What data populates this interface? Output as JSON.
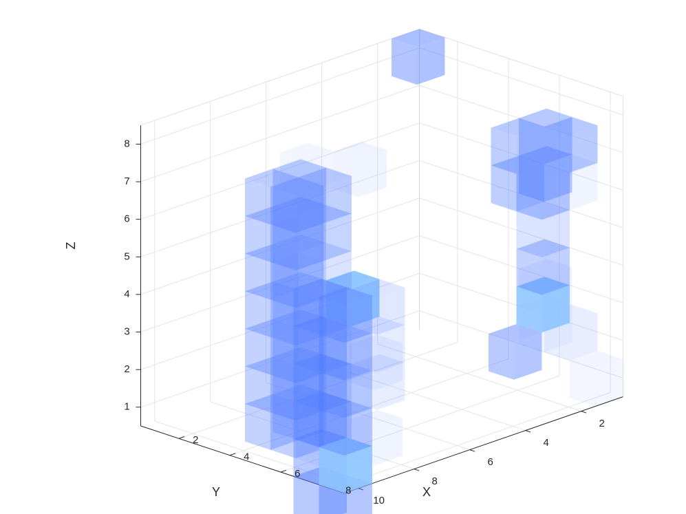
{
  "chart_data": {
    "type": "3d-voxel",
    "xlabel": "X",
    "ylabel": "Y",
    "zlabel": "Z",
    "xticks": [
      "2",
      "4",
      "6",
      "8",
      "10"
    ],
    "yticks": [
      "2",
      "4",
      "6",
      "8"
    ],
    "zticks": [
      "1",
      "2",
      "3",
      "4",
      "5",
      "6",
      "7",
      "8"
    ],
    "xlim": [
      0.5,
      10.5
    ],
    "ylim": [
      0.5,
      8.5
    ],
    "zlim": [
      0.5,
      8.5
    ],
    "grid": true,
    "face_color": "#4F7BFF",
    "highlight_color": "#8CC4FF",
    "voxels": [
      {
        "x": 1,
        "y": 8,
        "z": 1,
        "alpha": 0.1
      },
      {
        "x": 1,
        "y": 6,
        "z": 2,
        "alpha": 0.1
      },
      {
        "x": 1,
        "y": 6,
        "z": 3,
        "alpha": 0.12
      },
      {
        "x": 1,
        "y": 7,
        "z": 2,
        "alpha": 0.18
      },
      {
        "x": 1,
        "y": 7,
        "z": 6,
        "alpha": 0.12
      },
      {
        "x": 1,
        "y": 6,
        "z": 6,
        "alpha": 0.55
      },
      {
        "x": 1,
        "y": 6,
        "z": 7,
        "alpha": 0.55
      },
      {
        "x": 2,
        "y": 6,
        "z": 7,
        "alpha": 0.55
      },
      {
        "x": 2,
        "y": 6,
        "z": 6,
        "alpha": 0.55
      },
      {
        "x": 2,
        "y": 7,
        "z": 6,
        "alpha": 0.55
      },
      {
        "x": 1,
        "y": 7,
        "z": 7,
        "alpha": 0.55
      },
      {
        "x": 2,
        "y": 7,
        "z": 5,
        "alpha": 0.3
      },
      {
        "x": 2,
        "y": 7,
        "z": 4,
        "alpha": 0.5
      },
      {
        "x": 2,
        "y": 7,
        "z": 3,
        "alpha": 1.0,
        "highlight": true
      },
      {
        "x": 3,
        "y": 7,
        "z": 2,
        "alpha": 0.6
      },
      {
        "x": 1,
        "y": 1,
        "z": 8,
        "alpha": 0.65
      },
      {
        "x": 4,
        "y": 2,
        "z": 6,
        "alpha": 0.12
      },
      {
        "x": 5,
        "y": 1,
        "z": 6,
        "alpha": 0.1
      },
      {
        "x": 7,
        "y": 6,
        "z": 3,
        "alpha": 0.2
      },
      {
        "x": 7,
        "y": 6,
        "z": 2,
        "alpha": 0.18
      },
      {
        "x": 8,
        "y": 7,
        "z": 3,
        "alpha": 0.12
      },
      {
        "x": 8,
        "y": 7,
        "z": 1,
        "alpha": 0.12
      },
      {
        "x": 9,
        "y": 6,
        "z": 1,
        "alpha": 0.12
      },
      {
        "x": 8,
        "y": 4,
        "z": 5,
        "alpha": 0.3
      },
      {
        "x": 8,
        "y": 5,
        "z": 5,
        "alpha": 0.3
      },
      {
        "x": 8,
        "y": 5,
        "z": 4,
        "alpha": 0.3
      },
      {
        "x": 8,
        "y": 5,
        "z": 3,
        "alpha": 0.3
      },
      {
        "x": 8,
        "y": 4,
        "z": 4,
        "alpha": 0.4
      },
      {
        "x": 8,
        "y": 4,
        "z": 3,
        "alpha": 0.4
      },
      {
        "x": 8,
        "y": 4,
        "z": 2,
        "alpha": 0.4
      },
      {
        "x": 8,
        "y": 5,
        "z": 2,
        "alpha": 0.4
      },
      {
        "x": 8,
        "y": 5,
        "z": 6,
        "alpha": 0.45
      },
      {
        "x": 8,
        "y": 4,
        "z": 6,
        "alpha": 0.45
      },
      {
        "x": 8,
        "y": 4,
        "z": 7,
        "alpha": 0.5
      },
      {
        "x": 8,
        "y": 5,
        "z": 7,
        "alpha": 0.5
      },
      {
        "x": 9,
        "y": 5,
        "z": 7,
        "alpha": 0.5
      },
      {
        "x": 9,
        "y": 4,
        "z": 7,
        "alpha": 0.5
      },
      {
        "x": 9,
        "y": 4,
        "z": 6,
        "alpha": 0.5
      },
      {
        "x": 9,
        "y": 5,
        "z": 6,
        "alpha": 0.5
      },
      {
        "x": 9,
        "y": 5,
        "z": 5,
        "alpha": 0.5
      },
      {
        "x": 9,
        "y": 4,
        "z": 5,
        "alpha": 0.5
      },
      {
        "x": 9,
        "y": 4,
        "z": 4,
        "alpha": 0.5
      },
      {
        "x": 9,
        "y": 5,
        "z": 4,
        "alpha": 0.4
      },
      {
        "x": 9,
        "y": 4,
        "z": 3,
        "alpha": 0.5
      },
      {
        "x": 9,
        "y": 5,
        "z": 3,
        "alpha": 0.45
      },
      {
        "x": 9,
        "y": 4,
        "z": 2,
        "alpha": 0.5
      },
      {
        "x": 9,
        "y": 5,
        "z": 2,
        "alpha": 0.5
      },
      {
        "x": 9,
        "y": 5,
        "z": 1,
        "alpha": 0.5
      },
      {
        "x": 9,
        "y": 4,
        "z": 1,
        "alpha": 0.5
      },
      {
        "x": 8,
        "y": 4,
        "z": 1,
        "alpha": 0.4
      },
      {
        "x": 8,
        "y": 5,
        "z": 1,
        "alpha": 0.4
      },
      {
        "x": 7,
        "y": 5,
        "z": 4,
        "alpha": 1.0,
        "highlight": true
      },
      {
        "x": 7,
        "y": 6,
        "z": 4,
        "alpha": 0.25
      },
      {
        "x": 10,
        "y": 8,
        "z": 3,
        "alpha": 0.5
      },
      {
        "x": 10,
        "y": 8,
        "z": 4,
        "alpha": 0.55
      },
      {
        "x": 10,
        "y": 8,
        "z": 5,
        "alpha": 0.55
      },
      {
        "x": 10,
        "y": 7,
        "z": 5,
        "alpha": 0.55
      },
      {
        "x": 10,
        "y": 7,
        "z": 4,
        "alpha": 0.55
      },
      {
        "x": 10,
        "y": 7,
        "z": 3,
        "alpha": 0.55
      },
      {
        "x": 10,
        "y": 8,
        "z": 2,
        "alpha": 0.55
      },
      {
        "x": 10,
        "y": 7,
        "z": 2,
        "alpha": 0.55
      },
      {
        "x": 10,
        "y": 8,
        "z": 1,
        "alpha": 1.0,
        "highlight": true
      },
      {
        "x": 10,
        "y": 7,
        "z": 1,
        "alpha": 0.6
      },
      {
        "x": 10,
        "y": 8,
        "z": 0,
        "alpha": 0.6
      },
      {
        "x": 10,
        "y": 7,
        "z": 0,
        "alpha": 0.6
      }
    ]
  }
}
